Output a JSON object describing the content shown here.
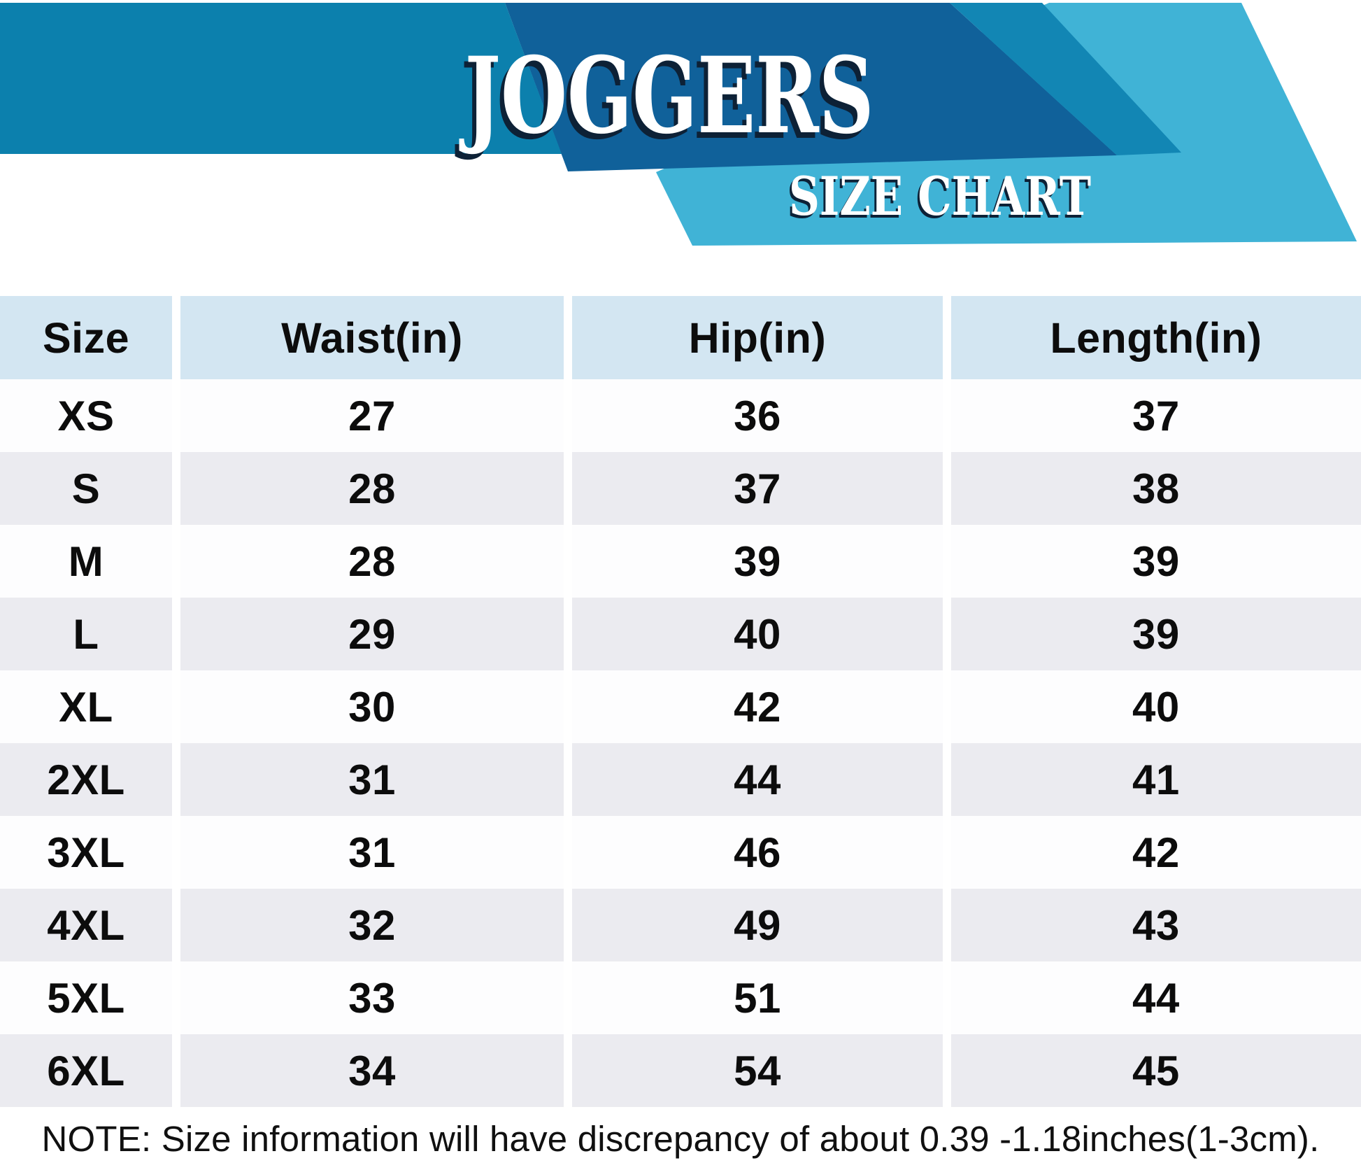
{
  "banner": {
    "title": "JOGGERS",
    "subtitle": "SIZE CHART"
  },
  "chart_data": {
    "type": "table",
    "title": "JOGGERS",
    "subtitle": "SIZE CHART",
    "columns": [
      "Size",
      "Waist(in)",
      "Hip(in)",
      "Length(in)"
    ],
    "rows": [
      [
        "XS",
        "27",
        "36",
        "37"
      ],
      [
        "S",
        "28",
        "37",
        "38"
      ],
      [
        "M",
        "28",
        "39",
        "39"
      ],
      [
        "L",
        "29",
        "40",
        "39"
      ],
      [
        "XL",
        "30",
        "42",
        "40"
      ],
      [
        "2XL",
        "31",
        "44",
        "41"
      ],
      [
        "3XL",
        "31",
        "46",
        "42"
      ],
      [
        "4XL",
        "32",
        "49",
        "43"
      ],
      [
        "5XL",
        "33",
        "51",
        "44"
      ],
      [
        "6XL",
        "34",
        "54",
        "45"
      ]
    ],
    "note": "NOTE: Size information will have discrepancy of about 0.39 -1.18inches(1-3cm).",
    "units": "inches",
    "legend_position": "none",
    "grid": "off"
  },
  "colors": {
    "banner_medium": "#0c80ad",
    "banner_dark": "#10619a",
    "banner_band": "#1286b4",
    "banner_light": "#40b3d6",
    "header_cell_bg": "#d3e6f2",
    "row_even_bg": "#ebebf0",
    "row_odd_bg": "#fdfdfe",
    "table_text": "#0c0c0c",
    "title_text": "#ffffff",
    "title_shadow": "#0d2136"
  }
}
